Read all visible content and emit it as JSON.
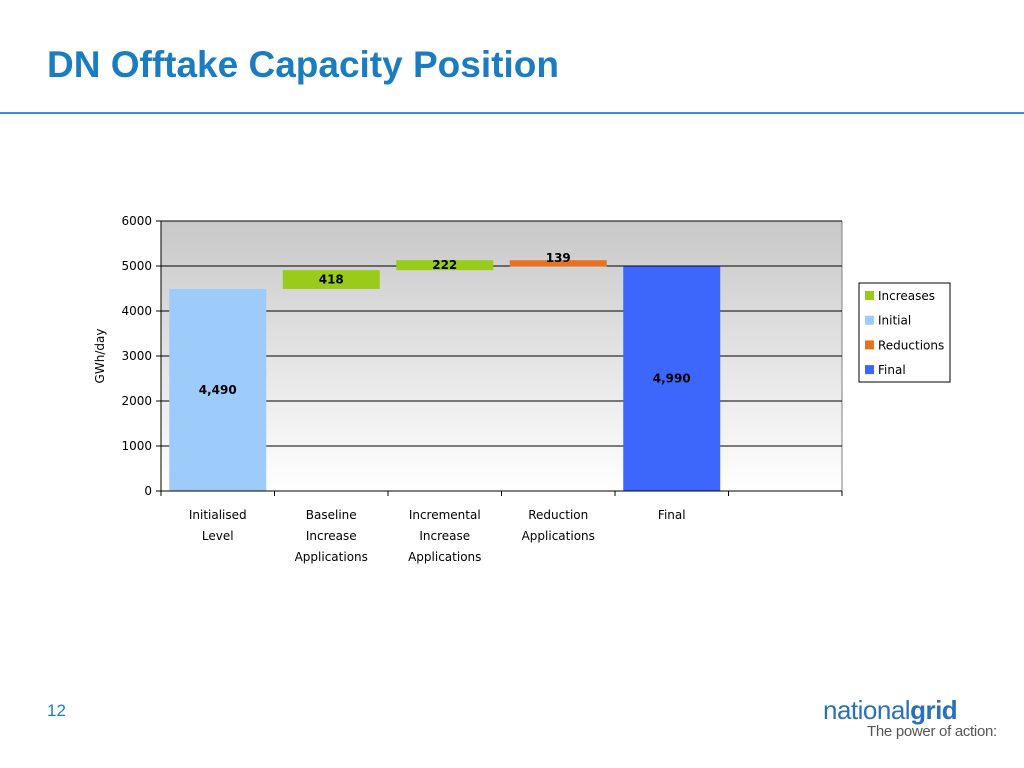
{
  "slide": {
    "title": "DN Offtake Capacity Position",
    "page_number": "12"
  },
  "logo": {
    "brand_light": "national",
    "brand_bold": "grid",
    "tagline": "The power of action:"
  },
  "colors": {
    "title": "#1a7cc1",
    "increases": "#99cc1a",
    "initial": "#9dcbfa",
    "reductions": "#e8731e",
    "final": "#3d67fa",
    "plot_top": "#c8c8c8",
    "plot_bottom": "#ffffff"
  },
  "chart_data": {
    "type": "bar",
    "subtype": "waterfall",
    "ylabel": "GWh/day",
    "ylim": [
      0,
      6000
    ],
    "yticks": [
      0,
      1000,
      2000,
      3000,
      4000,
      5000,
      6000
    ],
    "grid": true,
    "legend_position": "right",
    "categories": [
      [
        "Initialised",
        "Level"
      ],
      [
        "Baseline",
        "Increase",
        "Applications"
      ],
      [
        "Incremental",
        "Increase",
        "Applications"
      ],
      [
        "Reduction",
        "Applications"
      ],
      [
        "Final"
      ],
      []
    ],
    "legend": [
      "Increases",
      "Initial",
      "Reductions",
      "Final"
    ],
    "bars": [
      {
        "category_index": 0,
        "series": "Initial",
        "base": 0,
        "value": 4490,
        "label": "4,490"
      },
      {
        "category_index": 1,
        "series": "Increases",
        "base": 4490,
        "value": 418,
        "label": "418"
      },
      {
        "category_index": 2,
        "series": "Increases",
        "base": 4908,
        "value": 222,
        "label": "222"
      },
      {
        "category_index": 3,
        "series": "Reductions",
        "base": 4990,
        "value": 139,
        "label": "139"
      },
      {
        "category_index": 4,
        "series": "Final",
        "base": 0,
        "value": 4990,
        "label": "4,990"
      }
    ]
  }
}
